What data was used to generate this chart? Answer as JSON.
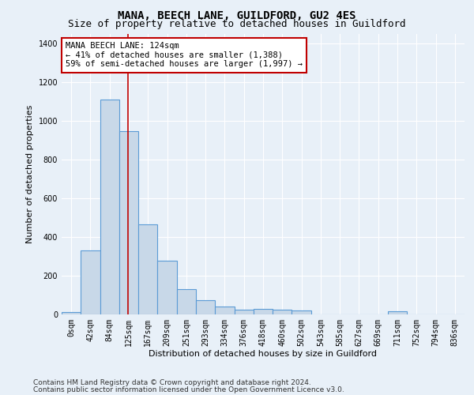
{
  "title": "MANA, BEECH LANE, GUILDFORD, GU2 4ES",
  "subtitle": "Size of property relative to detached houses in Guildford",
  "xlabel": "Distribution of detached houses by size in Guildford",
  "ylabel": "Number of detached properties",
  "footer_line1": "Contains HM Land Registry data © Crown copyright and database right 2024.",
  "footer_line2": "Contains public sector information licensed under the Open Government Licence v3.0.",
  "bar_labels": [
    "0sqm",
    "42sqm",
    "84sqm",
    "125sqm",
    "167sqm",
    "209sqm",
    "251sqm",
    "293sqm",
    "334sqm",
    "376sqm",
    "418sqm",
    "460sqm",
    "502sqm",
    "543sqm",
    "585sqm",
    "627sqm",
    "669sqm",
    "711sqm",
    "752sqm",
    "794sqm",
    "836sqm"
  ],
  "bar_values": [
    10,
    328,
    1110,
    945,
    462,
    275,
    130,
    70,
    40,
    22,
    25,
    22,
    18,
    0,
    0,
    0,
    0,
    13,
    0,
    0,
    0
  ],
  "bar_color": "#c8d8e8",
  "bar_edge_color": "#5b9bd5",
  "bar_edge_width": 0.8,
  "marker_color": "#c00000",
  "annotation_line1": "MANA BEECH LANE: 124sqm",
  "annotation_line2": "← 41% of detached houses are smaller (1,388)",
  "annotation_line3": "59% of semi-detached houses are larger (1,997) →",
  "annotation_box_color": "#ffffff",
  "annotation_box_edge_color": "#c00000",
  "ylim": [
    0,
    1450
  ],
  "yticks": [
    0,
    200,
    400,
    600,
    800,
    1000,
    1200,
    1400
  ],
  "bg_color": "#e8f0f8",
  "plot_bg_color": "#e8f0f8",
  "grid_color": "#ffffff",
  "title_fontsize": 10,
  "subtitle_fontsize": 9,
  "axis_label_fontsize": 8,
  "tick_fontsize": 7,
  "annotation_fontsize": 7.5,
  "footer_fontsize": 6.5
}
